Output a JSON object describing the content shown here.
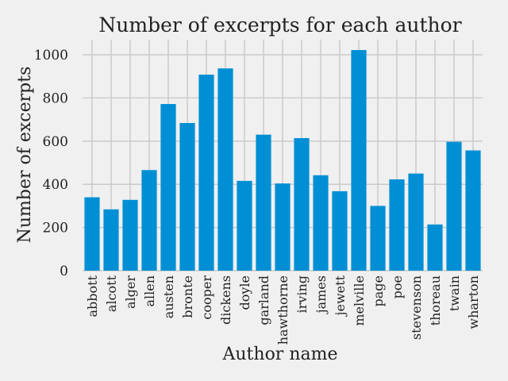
{
  "chart_data": {
    "type": "bar",
    "title": "Number of excerpts for each author",
    "xlabel": "Author name",
    "ylabel": "Number of excerpts",
    "categories": [
      "abbott",
      "alcott",
      "alger",
      "allen",
      "austen",
      "bronte",
      "cooper",
      "dickens",
      "doyle",
      "garland",
      "hawthorne",
      "irving",
      "james",
      "jewett",
      "melville",
      "page",
      "poe",
      "stevenson",
      "thoreau",
      "twain",
      "wharton"
    ],
    "values": [
      340,
      284,
      328,
      466,
      772,
      684,
      908,
      937,
      416,
      630,
      404,
      614,
      442,
      368,
      1022,
      300,
      423,
      450,
      214,
      597,
      557
    ],
    "ylim": [
      0,
      1070
    ],
    "yticks": [
      0,
      200,
      400,
      600,
      800,
      1000
    ],
    "grid": true,
    "bar_color": "#008fd5",
    "background_color": "#f0f0f0",
    "grid_color": "#cbcbcb"
  }
}
